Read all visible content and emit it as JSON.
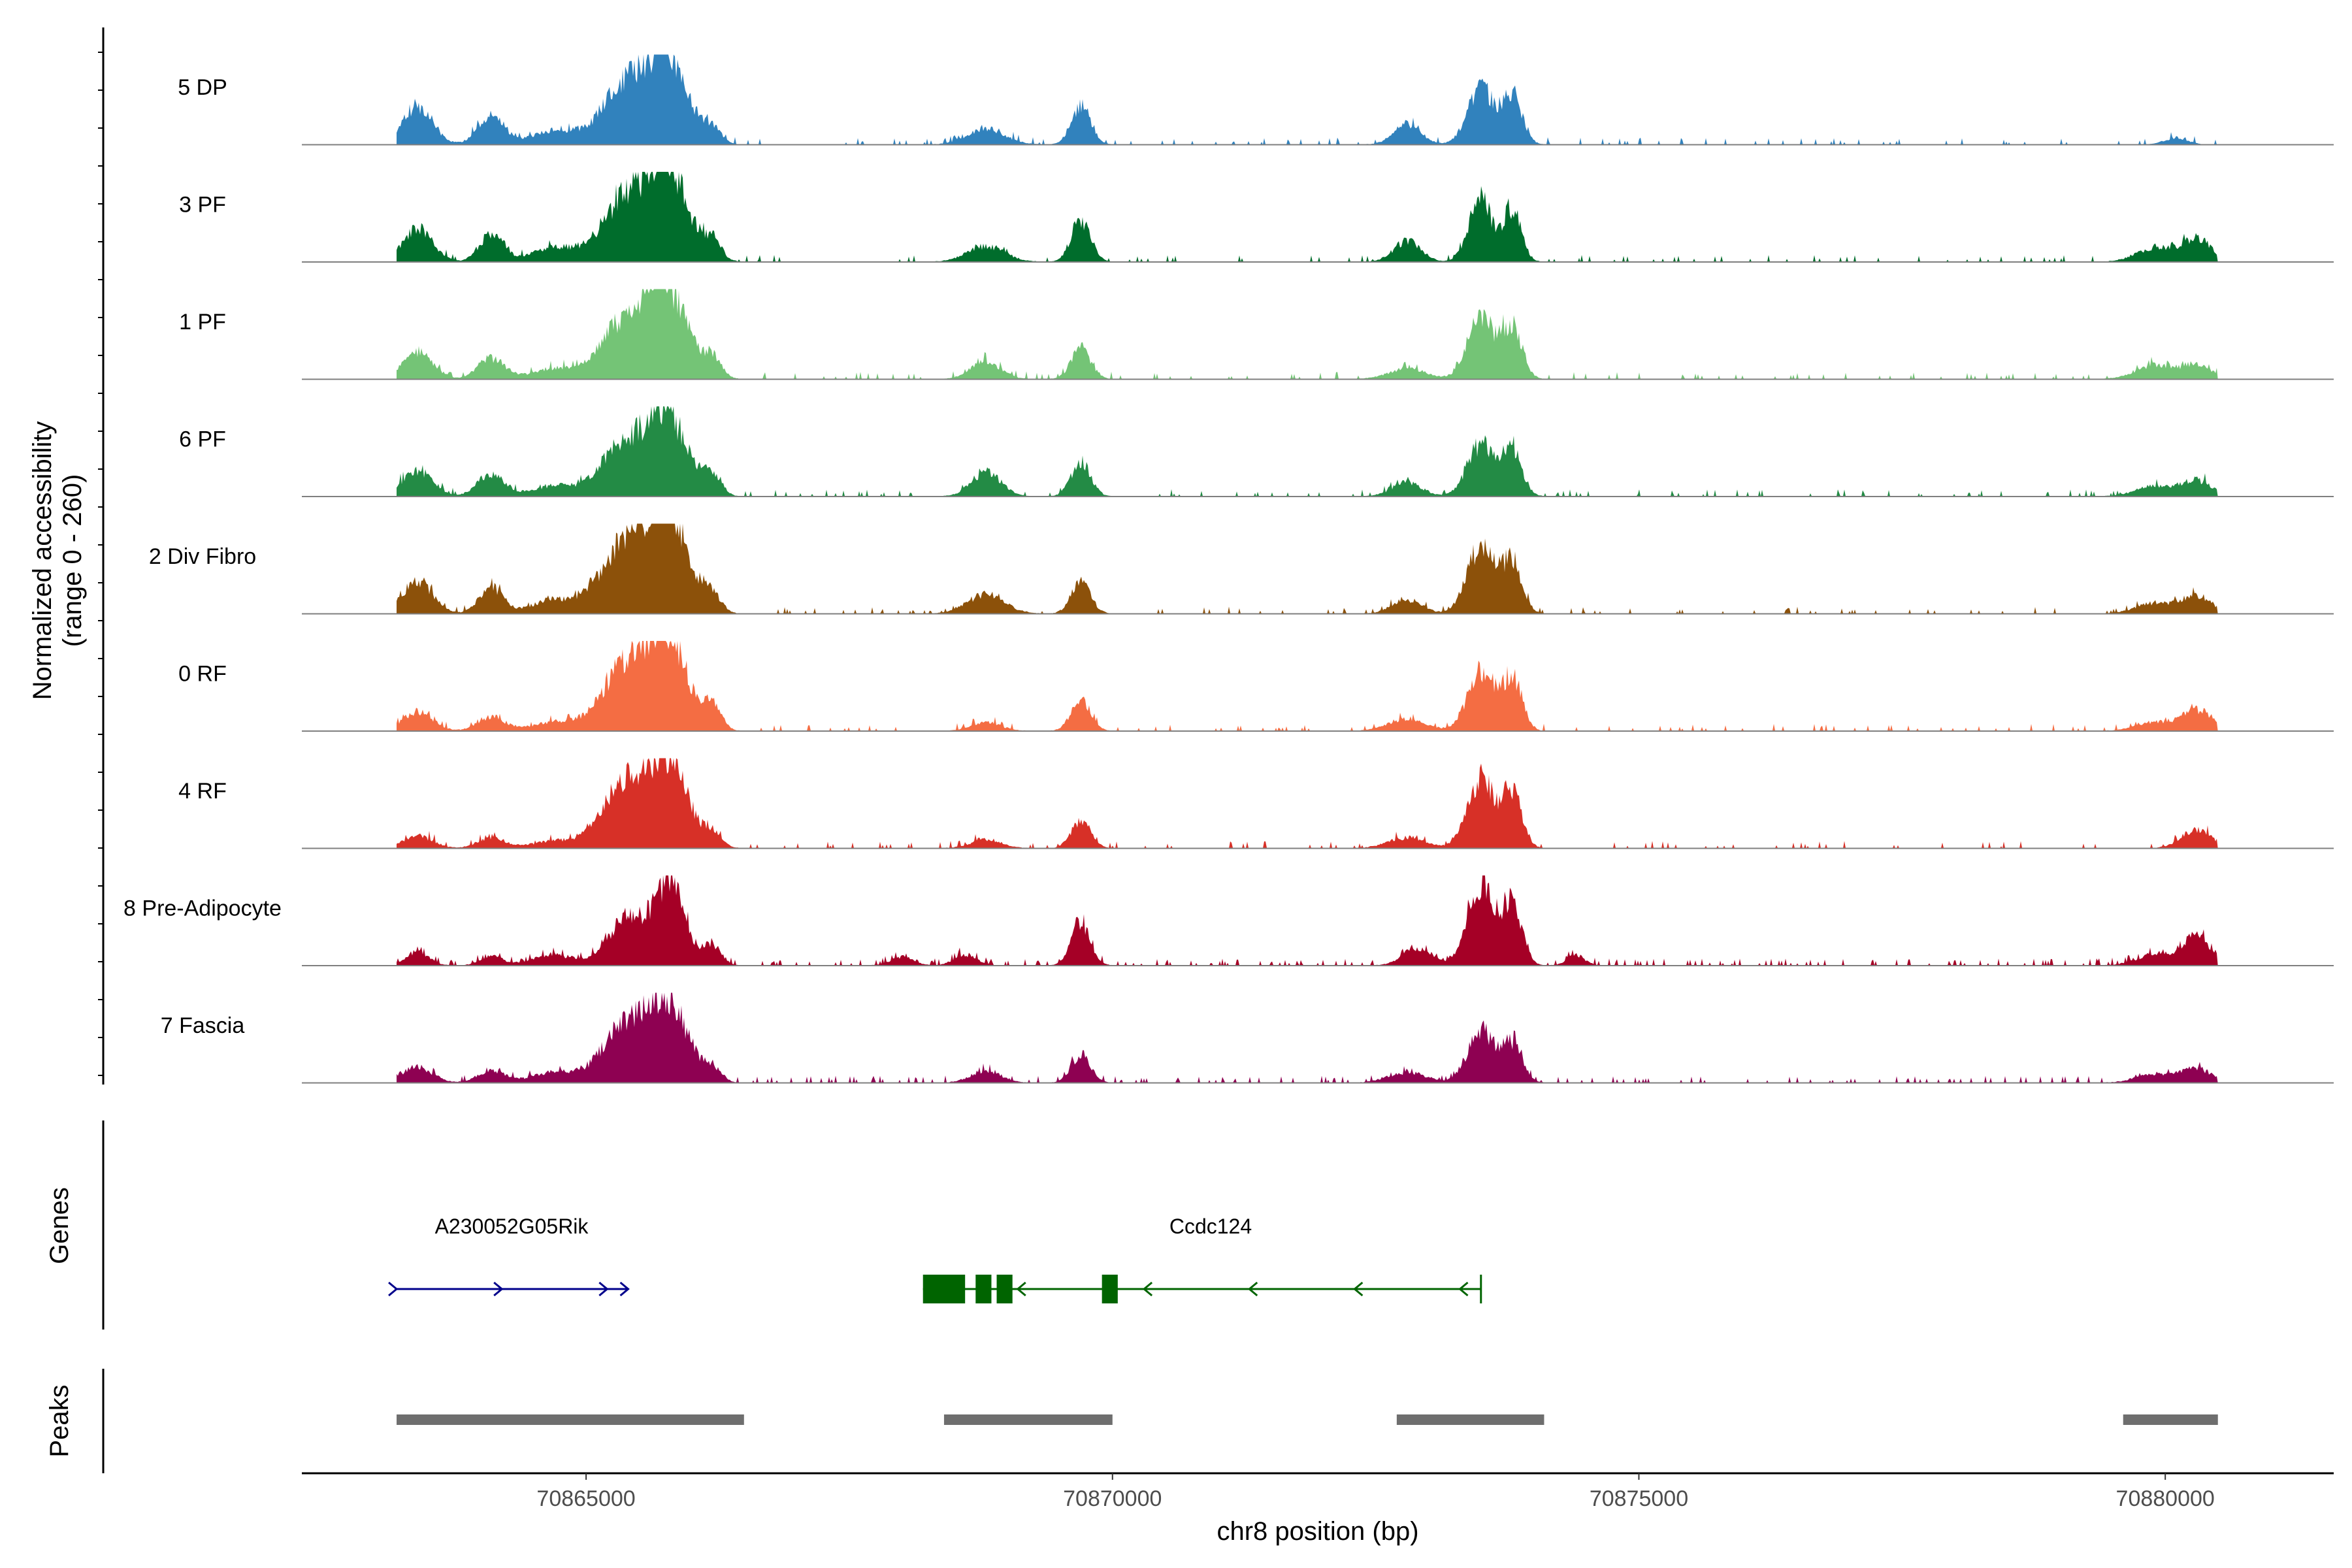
{
  "chart_data": {
    "type": "area",
    "title": "",
    "xlabel": "chr8 position (bp)",
    "ylabel": "Normalized accessibility",
    "ylabel_range": "(range 0 - 260)",
    "ylim": [
      0,
      260
    ],
    "xlim": [
      70862300,
      70881600
    ],
    "x_ticks": [
      70865000,
      70870000,
      70875000,
      70880000
    ],
    "x_tick_labels": [
      "70865000",
      "70870000",
      "70875000",
      "70880000"
    ],
    "tracks": [
      {
        "name": "5 DP",
        "color": "#3182bd",
        "noise": 0.03,
        "peaks": [
          [
            70863400,
            200,
            110
          ],
          [
            70864100,
            180,
            80
          ],
          [
            70864700,
            300,
            40
          ],
          [
            70865400,
            330,
            180
          ],
          [
            70865800,
            250,
            230
          ],
          [
            70866200,
            120,
            40
          ],
          [
            70868800,
            250,
            45
          ],
          [
            70869700,
            130,
            110
          ],
          [
            70872800,
            180,
            60
          ],
          [
            70873500,
            180,
            160
          ],
          [
            70873800,
            130,
            140
          ],
          [
            70880100,
            150,
            20
          ]
        ]
      },
      {
        "name": "3 PF",
        "color": "#006d2c",
        "noise": 0.03,
        "peaks": [
          [
            70863400,
            200,
            95
          ],
          [
            70864100,
            160,
            80
          ],
          [
            70864700,
            300,
            40
          ],
          [
            70865400,
            330,
            190
          ],
          [
            70865800,
            250,
            235
          ],
          [
            70866200,
            120,
            60
          ],
          [
            70868800,
            250,
            45
          ],
          [
            70869700,
            130,
            120
          ],
          [
            70872800,
            180,
            60
          ],
          [
            70873500,
            160,
            170
          ],
          [
            70873800,
            120,
            150
          ],
          [
            70879900,
            250,
            40
          ],
          [
            70880300,
            200,
            65
          ]
        ]
      },
      {
        "name": "1 PF",
        "color": "#74c476",
        "noise": 0.03,
        "peaks": [
          [
            70863400,
            200,
            80
          ],
          [
            70864100,
            180,
            60
          ],
          [
            70864700,
            300,
            30
          ],
          [
            70865400,
            330,
            180
          ],
          [
            70865800,
            250,
            220
          ],
          [
            70866200,
            120,
            60
          ],
          [
            70868800,
            200,
            50
          ],
          [
            70869700,
            130,
            90
          ],
          [
            70872800,
            250,
            30
          ],
          [
            70873500,
            180,
            180
          ],
          [
            70873800,
            130,
            150
          ],
          [
            70879900,
            250,
            40
          ],
          [
            70880300,
            200,
            40
          ]
        ]
      },
      {
        "name": "6 PF",
        "color": "#238b45",
        "noise": 0.03,
        "peaks": [
          [
            70863400,
            200,
            75
          ],
          [
            70864100,
            180,
            65
          ],
          [
            70864700,
            300,
            30
          ],
          [
            70865400,
            330,
            160
          ],
          [
            70865800,
            250,
            200
          ],
          [
            70866200,
            120,
            60
          ],
          [
            70868800,
            200,
            70
          ],
          [
            70869700,
            130,
            100
          ],
          [
            70872800,
            200,
            40
          ],
          [
            70873500,
            180,
            150
          ],
          [
            70873800,
            130,
            130
          ],
          [
            70879900,
            250,
            30
          ],
          [
            70880300,
            200,
            45
          ]
        ]
      },
      {
        "name": "2 Div Fibro",
        "color": "#8c510a",
        "noise": 0.03,
        "peaks": [
          [
            70863400,
            200,
            95
          ],
          [
            70864100,
            160,
            75
          ],
          [
            70864700,
            300,
            40
          ],
          [
            70865400,
            330,
            220
          ],
          [
            70865800,
            250,
            260
          ],
          [
            70866200,
            120,
            50
          ],
          [
            70868800,
            250,
            55
          ],
          [
            70869700,
            130,
            90
          ],
          [
            70872800,
            200,
            40
          ],
          [
            70873500,
            180,
            200
          ],
          [
            70873800,
            130,
            150
          ],
          [
            70879900,
            250,
            30
          ],
          [
            70880300,
            200,
            50
          ]
        ]
      },
      {
        "name": "0 RF",
        "color": "#f46d43",
        "noise": 0.03,
        "peaks": [
          [
            70863400,
            200,
            55
          ],
          [
            70864100,
            180,
            40
          ],
          [
            70864700,
            300,
            25
          ],
          [
            70865400,
            330,
            200
          ],
          [
            70865800,
            250,
            230
          ],
          [
            70866200,
            120,
            65
          ],
          [
            70868800,
            200,
            25
          ],
          [
            70869700,
            130,
            90
          ],
          [
            70872800,
            250,
            35
          ],
          [
            70873500,
            180,
            170
          ],
          [
            70873800,
            130,
            150
          ],
          [
            70879900,
            250,
            25
          ],
          [
            70880300,
            200,
            60
          ]
        ]
      },
      {
        "name": "4 RF",
        "color": "#d73027",
        "noise": 0.03,
        "peaks": [
          [
            70863400,
            200,
            35
          ],
          [
            70864100,
            180,
            30
          ],
          [
            70864700,
            300,
            20
          ],
          [
            70865400,
            330,
            190
          ],
          [
            70865800,
            250,
            220
          ],
          [
            70866200,
            120,
            40
          ],
          [
            70868800,
            200,
            25
          ],
          [
            70869700,
            130,
            80
          ],
          [
            70872800,
            250,
            30
          ],
          [
            70873500,
            180,
            200
          ],
          [
            70873800,
            130,
            160
          ],
          [
            70880300,
            200,
            55
          ]
        ]
      },
      {
        "name": "8 Pre-Adipocyte",
        "color": "#a50026",
        "noise": 0.06,
        "peaks": [
          [
            70863400,
            150,
            40
          ],
          [
            70864100,
            150,
            25
          ],
          [
            70864700,
            300,
            30
          ],
          [
            70865400,
            250,
            140
          ],
          [
            70865800,
            200,
            240
          ],
          [
            70866200,
            120,
            60
          ],
          [
            70868000,
            150,
            25
          ],
          [
            70868600,
            150,
            30
          ],
          [
            70869700,
            130,
            120
          ],
          [
            70872900,
            200,
            50
          ],
          [
            70873500,
            180,
            230
          ],
          [
            70873800,
            130,
            180
          ],
          [
            70874400,
            120,
            30
          ],
          [
            70879900,
            250,
            30
          ],
          [
            70880300,
            200,
            80
          ]
        ]
      },
      {
        "name": "7 Fascia",
        "color": "#8e0152",
        "noise": 0.04,
        "peaks": [
          [
            70863400,
            200,
            45
          ],
          [
            70864100,
            180,
            35
          ],
          [
            70864700,
            300,
            30
          ],
          [
            70865400,
            330,
            170
          ],
          [
            70865800,
            250,
            200
          ],
          [
            70866200,
            120,
            40
          ],
          [
            70868800,
            200,
            35
          ],
          [
            70869700,
            130,
            80
          ],
          [
            70872800,
            250,
            30
          ],
          [
            70873500,
            180,
            150
          ],
          [
            70873800,
            130,
            110
          ],
          [
            70879900,
            250,
            25
          ],
          [
            70880300,
            200,
            40
          ]
        ]
      }
    ],
    "data_range": [
      70863200,
      70880500
    ],
    "genes_label": "Genes",
    "genes": [
      {
        "name": "A230052G05Rik",
        "color": "#00008b",
        "strand": "+",
        "start": 70863200,
        "end": 70865400,
        "exons": [],
        "arrows": [
          70863200,
          70864200,
          70865200,
          70865400
        ]
      },
      {
        "name": "Ccdc124",
        "color": "#006400",
        "strand": "-",
        "start": 70868200,
        "end": 70873500,
        "exons": [
          [
            70868200,
            70868600
          ],
          [
            70868700,
            70868850
          ],
          [
            70868900,
            70869050
          ],
          [
            70869900,
            70870050
          ]
        ],
        "arrows": [
          70869100,
          70870300,
          70871300,
          70872300,
          70873300
        ]
      }
    ],
    "peaks_label": "Peaks",
    "peak_regions": [
      [
        70863200,
        70866500
      ],
      [
        70868400,
        70870000
      ],
      [
        70872700,
        70874100
      ],
      [
        70879600,
        70880500
      ]
    ],
    "colors": {
      "baseline": "#7f7f7f",
      "peak_bar": "#6e6e6e",
      "axis": "#000000",
      "tick_text": "#4d4d4d"
    }
  }
}
